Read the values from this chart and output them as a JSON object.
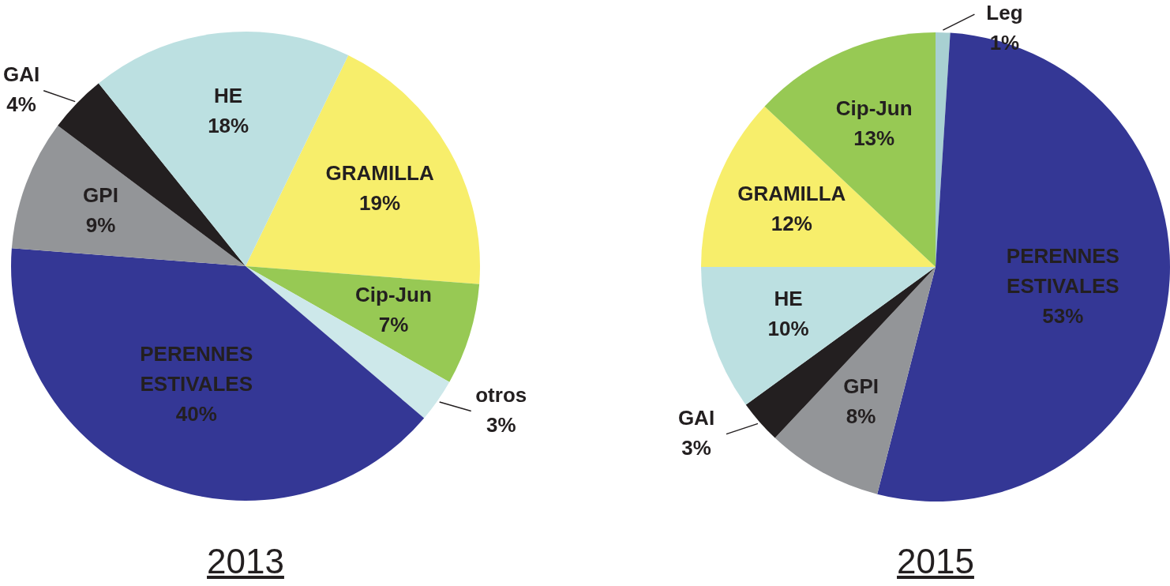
{
  "chart_data": [
    {
      "type": "pie",
      "title": "2013",
      "categories": [
        "GRAMILLA",
        "Cip-Jun",
        "otros",
        "PERENNES ESTIVALES",
        "GPI",
        "GAI",
        "HE"
      ],
      "values": [
        19,
        7,
        3,
        40,
        9,
        4,
        18
      ],
      "colors": [
        "#f7ee6b",
        "#97c954",
        "#cde8ea",
        "#343795",
        "#939598",
        "#231f20",
        "#bce0e1"
      ],
      "value_labels": [
        "19%",
        "7%",
        "3%",
        "40%",
        "9%",
        "4%",
        "18%"
      ]
    },
    {
      "type": "pie",
      "title": "2015",
      "categories": [
        "Leg",
        "PERENNES ESTIVALES",
        "GPI",
        "GAI",
        "HE",
        "GRAMILLA",
        "Cip-Jun"
      ],
      "values": [
        1,
        53,
        8,
        3,
        10,
        12,
        13
      ],
      "colors": [
        "#a8d0d2",
        "#343795",
        "#939598",
        "#231f20",
        "#bce0e1",
        "#f7ee6b",
        "#97c954"
      ],
      "value_labels": [
        "1%",
        "53%",
        "8%",
        "3%",
        "10%",
        "12%",
        "13%"
      ]
    }
  ]
}
